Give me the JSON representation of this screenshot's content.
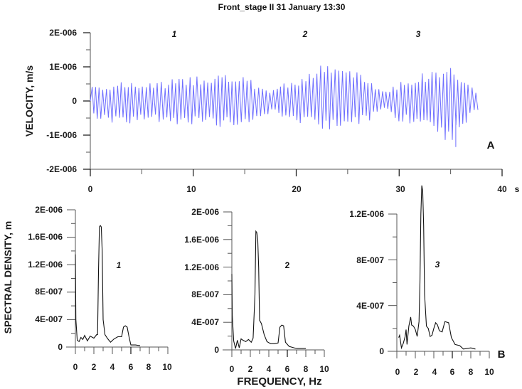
{
  "title": "Front_stage II   31 January 13:30",
  "panel_labels": {
    "a": "A",
    "b": "B"
  },
  "colors": {
    "velocity": "#3333ff",
    "velocity_dark": "#0000cc",
    "spectrum": "#111111",
    "axis": "#555555"
  },
  "top": {
    "ylabel": "VELOCITY, m/s",
    "xunit": "s",
    "yticks": [
      "2E-006",
      "1E-006",
      "0",
      "-1E-006",
      "-2E-006"
    ],
    "xticks": [
      "0",
      "10",
      "20",
      "30",
      "40"
    ],
    "segment_labels": [
      "1",
      "2",
      "3"
    ]
  },
  "bottom": {
    "ylabel": "SPECTRAL DENSITY, m",
    "xlabel": "FREQUENCY, Hz",
    "xticks": [
      "0",
      "2",
      "4",
      "6",
      "8",
      "10"
    ],
    "p1": {
      "label": "1",
      "yticks": [
        "2E-006",
        "1.6E-006",
        "1.2E-006",
        "8E-007",
        "4E-007",
        "0"
      ]
    },
    "p2": {
      "label": "2",
      "yticks": [
        "2E-006",
        "1.6E-006",
        "1.2E-006",
        "8E-007",
        "4E-007",
        "0"
      ]
    },
    "p3": {
      "label": "3",
      "yticks": [
        "1.2E-006",
        "8E-007",
        "4E-007",
        "0"
      ]
    }
  },
  "chart_data": [
    {
      "type": "line",
      "title": "Front_stage II 31 January 13:30",
      "panel": "A",
      "xlabel": "s",
      "ylabel": "VELOCITY, m/s",
      "xlim": [
        0,
        40
      ],
      "ylim": [
        -2e-06,
        2e-06
      ],
      "description": "Oscillating velocity record ~37.5 s long, ~2.8 Hz dominant; amplitude roughly ±5E-007 rising to ±8E-007 near 12 s, ±1.1E-006 near 23-25 s and 35 s; min spike ~-1.35E-006 at ~35.5 s",
      "annotations": [
        {
          "text": "1",
          "x": 12
        },
        {
          "text": "2",
          "x": 21
        },
        {
          "text": "3",
          "x": 31.5
        }
      ],
      "envelope": {
        "t": [
          0,
          3,
          6,
          9,
          12,
          15,
          17.5,
          20,
          23,
          25,
          27,
          28.5,
          30,
          33,
          35,
          36.5,
          37.5
        ],
        "max": [
          5e-07,
          5.5e-07,
          5.5e-07,
          7e-07,
          8.5e-07,
          7e-07,
          3.5e-07,
          7e-07,
          1.15e-06,
          1e-06,
          7e-07,
          3e-07,
          6e-07,
          9e-07,
          1.1e-06,
          6e-07,
          3e-07
        ],
        "min": [
          -5e-07,
          -7e-07,
          -6e-07,
          -7e-07,
          -8e-07,
          -7e-07,
          -3.5e-07,
          -7e-07,
          -8.5e-07,
          -8e-07,
          -6e-07,
          -3e-07,
          -6e-07,
          -8e-07,
          -1.35e-06,
          -7e-07,
          -3e-07
        ]
      }
    },
    {
      "type": "line",
      "panel": "B1",
      "xlabel": "FREQUENCY, Hz",
      "ylabel": "SPECTRAL DENSITY, m",
      "xlim": [
        0,
        10
      ],
      "ylim": [
        0,
        2e-06
      ],
      "annotation": "1",
      "x": [
        0,
        0.05,
        0.2,
        0.4,
        0.6,
        0.8,
        1.0,
        1.3,
        1.6,
        2.0,
        2.3,
        2.4,
        2.5,
        2.6,
        2.7,
        2.8,
        2.9,
        3.0,
        3.2,
        3.5,
        3.8,
        4.2,
        4.6,
        5.0,
        5.2,
        5.4,
        5.6,
        5.8,
        6.0,
        6.5,
        7.0
      ],
      "y": [
        1.35e-06,
        4e-07,
        1e-07,
        8e-08,
        1.4e-07,
        1.1e-07,
        1.7e-07,
        9e-08,
        1.6e-07,
        1.3e-07,
        1.8e-07,
        1.8e-07,
        1.1e-06,
        1.75e-06,
        1.77e-06,
        1.75e-06,
        1.4e-06,
        4e-07,
        1.8e-07,
        1.2e-07,
        7e-08,
        1.2e-07,
        1.5e-07,
        1.5e-07,
        2.9e-07,
        3.1e-07,
        2.9e-07,
        1.5e-07,
        3e-08,
        3e-08,
        2e-08
      ]
    },
    {
      "type": "line",
      "panel": "B2",
      "xlabel": "FREQUENCY, Hz",
      "ylabel": "SPECTRAL DENSITY, m",
      "xlim": [
        0,
        10
      ],
      "ylim": [
        0,
        2e-06
      ],
      "annotation": "2",
      "x": [
        0,
        0.05,
        0.2,
        0.4,
        0.6,
        0.8,
        1.0,
        1.2,
        1.5,
        1.8,
        2.1,
        2.3,
        2.5,
        2.6,
        2.7,
        2.8,
        2.9,
        3.0,
        3.2,
        3.5,
        3.8,
        4.2,
        4.6,
        5.0,
        5.2,
        5.4,
        5.6,
        5.8,
        6.2,
        7.0,
        8.0
      ],
      "y": [
        1.1e-06,
        5e-07,
        1.3e-07,
        2e-08,
        1.4e-07,
        3e-08,
        1.6e-07,
        1.4e-07,
        1.2e-07,
        1.5e-07,
        1.1e-07,
        1.7e-07,
        8e-07,
        1.72e-06,
        1.7e-06,
        1.6e-06,
        1.2e-06,
        4.3e-07,
        3.8e-07,
        2.2e-07,
        1.2e-07,
        9e-08,
        9e-08,
        1e-07,
        3.3e-07,
        3.6e-07,
        3.5e-07,
        1.1e-07,
        5e-08,
        2e-08,
        2e-08
      ]
    },
    {
      "type": "line",
      "panel": "B3",
      "xlabel": "FREQUENCY, Hz",
      "ylabel": "SPECTRAL DENSITY, m",
      "xlim": [
        0,
        10
      ],
      "ylim": [
        0,
        1.45e-06
      ],
      "annotation": "3",
      "x": [
        0.2,
        0.3,
        0.5,
        0.7,
        0.9,
        1.0,
        1.1,
        1.3,
        1.5,
        1.6,
        1.8,
        2.0,
        2.2,
        2.4,
        2.5,
        2.6,
        2.7,
        2.8,
        2.9,
        3.0,
        3.2,
        3.4,
        3.6,
        3.8,
        4.0,
        4.2,
        4.4,
        4.6,
        4.9,
        5.2,
        5.6,
        5.9,
        6.3,
        6.8,
        7.2,
        8.0,
        8.5
      ],
      "y": [
        1.2e-07,
        1.4e-07,
        3e-08,
        7e-08,
        1.3e-07,
        1.9e-07,
        6e-08,
        2.2e-07,
        3e-07,
        2.3e-07,
        2.2e-07,
        1.9e-07,
        1.3e-07,
        2.6e-07,
        6e-07,
        1.2e-06,
        1.45e-06,
        1.4e-06,
        1.1e-06,
        5e-07,
        2.2e-07,
        2e-07,
        1.3e-07,
        1.4e-07,
        2e-07,
        2.5e-07,
        2.3e-07,
        1.8e-07,
        1.7e-07,
        2.6e-07,
        2.5e-07,
        1.2e-07,
        6e-08,
        5e-08,
        2e-08,
        3e-08,
        2e-08
      ]
    }
  ]
}
